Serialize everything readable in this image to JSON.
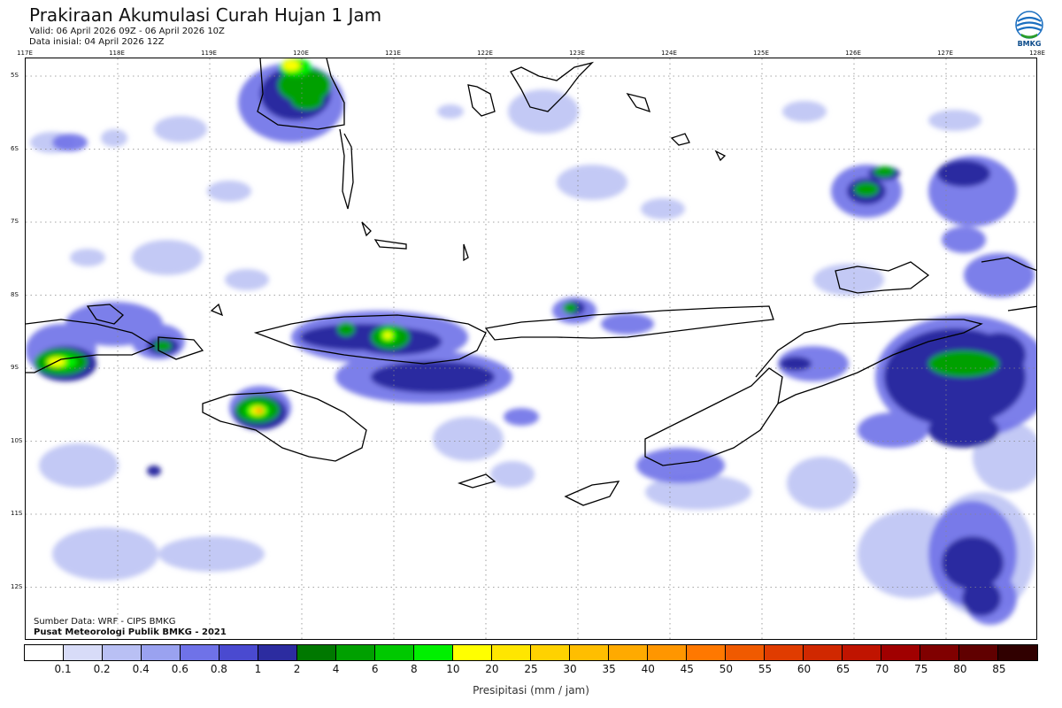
{
  "header": {
    "title": "Prakiraan Akumulasi Curah Hujan 1 Jam",
    "valid": "Valid: 06 April 2026 09Z - 06 April 2026 10Z",
    "initial": "Data inisial: 04 April 2026 12Z",
    "logo_text": "BMKG"
  },
  "map": {
    "lon_labels": [
      "117E",
      "118E",
      "119E",
      "120E",
      "121E",
      "122E",
      "123E",
      "124E",
      "125E",
      "126E",
      "127E",
      "128E"
    ],
    "lat_labels": [
      "5S",
      "6S",
      "7S",
      "8S",
      "9S",
      "10S",
      "11S",
      "12S"
    ],
    "source_line1": "Sumber Data: WRF - CIPS BMKG",
    "source_line2": "Pusat Meteorologi Publik BMKG - 2021"
  },
  "legend": {
    "ticks": [
      "0.1",
      "0.2",
      "0.4",
      "0.6",
      "0.8",
      "1",
      "2",
      "4",
      "6",
      "8",
      "10",
      "20",
      "25",
      "30",
      "35",
      "40",
      "45",
      "50",
      "55",
      "60",
      "65",
      "70",
      "75",
      "80",
      "85"
    ],
    "colors": [
      "#ffffff",
      "#d8dcf8",
      "#b9c0f4",
      "#9aa2f0",
      "#6f72e8",
      "#4a4ad0",
      "#2c2ca0",
      "#007800",
      "#00a000",
      "#00c800",
      "#00f000",
      "#ffff00",
      "#ffe600",
      "#ffd200",
      "#ffbe00",
      "#ffaa00",
      "#ff9600",
      "#ff7800",
      "#f05a00",
      "#e03c00",
      "#d02800",
      "#c01400",
      "#a00000",
      "#800000",
      "#600000",
      "#300000"
    ],
    "unit_label": "Presipitasi (mm / jam)"
  }
}
